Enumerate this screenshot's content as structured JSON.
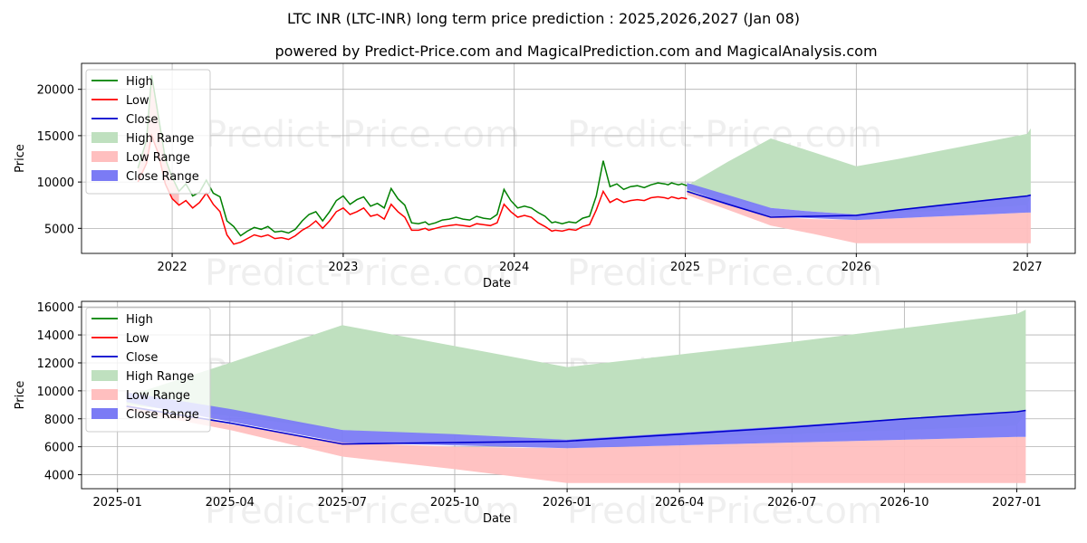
{
  "title": "LTC INR (LTC-INR) long term price prediction : 2025,2026,2027 (Jan 08)",
  "subtitle": "powered by Predict-Price.com and MagicalPrediction.com and MagicalAnalysis.com",
  "watermark": "Predict-Price.com",
  "colors": {
    "high": "#008000",
    "low": "#ff0000",
    "close": "#0000cd",
    "high_range": "#bfe0bf",
    "low_range": "#ffbfbf",
    "close_range": "#7b7bf5",
    "grid": "#b0b0b0"
  },
  "chart_data": [
    {
      "type": "line",
      "name": "top",
      "xlabel": "Date",
      "ylabel": "Price",
      "xlim": [
        2021.47,
        2027.28
      ],
      "ylim": [
        2300,
        22800
      ],
      "x_ticks": [
        2022,
        2023,
        2024,
        2025,
        2026,
        2027
      ],
      "x_tick_labels": [
        "2022",
        "2023",
        "2024",
        "2025",
        "2026",
        "2027"
      ],
      "y_ticks": [
        5000,
        10000,
        15000,
        20000
      ],
      "y_tick_labels": [
        "5000",
        "10000",
        "15000",
        "20000"
      ],
      "legend": [
        "High",
        "Low",
        "Close",
        "High Range",
        "Low Range",
        "Close Range"
      ],
      "legend_position": "top-left",
      "history": {
        "x": [
          2021.8,
          2021.85,
          2021.88,
          2021.92,
          2021.96,
          2022.0,
          2022.04,
          2022.08,
          2022.12,
          2022.16,
          2022.2,
          2022.24,
          2022.28,
          2022.32,
          2022.36,
          2022.4,
          2022.44,
          2022.48,
          2022.52,
          2022.56,
          2022.6,
          2022.64,
          2022.68,
          2022.72,
          2022.76,
          2022.8,
          2022.84,
          2022.88,
          2022.92,
          2022.96,
          2023.0,
          2023.04,
          2023.08,
          2023.12,
          2023.16,
          2023.2,
          2023.24,
          2023.28,
          2023.32,
          2023.36,
          2023.4,
          2023.44,
          2023.48,
          2023.5,
          2023.54,
          2023.58,
          2023.62,
          2023.66,
          2023.7,
          2023.74,
          2023.78,
          2023.82,
          2023.86,
          2023.9,
          2023.94,
          2023.98,
          2024.02,
          2024.06,
          2024.1,
          2024.14,
          2024.18,
          2024.22,
          2024.24,
          2024.28,
          2024.32,
          2024.36,
          2024.4,
          2024.44,
          2024.48,
          2024.52,
          2024.56,
          2024.6,
          2024.64,
          2024.68,
          2024.72,
          2024.76,
          2024.8,
          2024.84,
          2024.88,
          2024.9,
          2024.92,
          2024.94,
          2024.96,
          2024.98,
          2025.01
        ],
        "high": [
          11500,
          14500,
          21500,
          17000,
          12500,
          10500,
          9000,
          9800,
          8500,
          8900,
          10200,
          8800,
          8400,
          5800,
          5200,
          4200,
          4700,
          5100,
          4900,
          5200,
          4600,
          4700,
          4500,
          4900,
          5800,
          6500,
          6800,
          5800,
          6800,
          8000,
          8500,
          7600,
          8100,
          8400,
          7400,
          7700,
          7200,
          9300,
          8200,
          7500,
          5600,
          5500,
          5700,
          5400,
          5600,
          5900,
          6000,
          6200,
          6000,
          5900,
          6300,
          6100,
          6000,
          6500,
          9200,
          8000,
          7200,
          7400,
          7200,
          6700,
          6300,
          5600,
          5700,
          5500,
          5700,
          5600,
          6100,
          6300,
          8500,
          12300,
          9500,
          9800,
          9200,
          9500,
          9600,
          9400,
          9700,
          9900,
          9800,
          9700,
          9900,
          9800,
          9700,
          9800,
          9600
        ],
        "low": [
          10000,
          12000,
          15000,
          13000,
          9800,
          8200,
          7500,
          8000,
          7200,
          7800,
          8800,
          7600,
          6800,
          4300,
          3300,
          3500,
          3900,
          4300,
          4100,
          4300,
          3900,
          4000,
          3800,
          4200,
          4800,
          5200,
          5800,
          5000,
          5800,
          6800,
          7200,
          6500,
          6800,
          7200,
          6300,
          6500,
          6000,
          7600,
          6800,
          6200,
          4800,
          4800,
          5000,
          4800,
          5000,
          5200,
          5300,
          5400,
          5300,
          5200,
          5500,
          5400,
          5300,
          5600,
          7600,
          6800,
          6200,
          6400,
          6200,
          5600,
          5200,
          4700,
          4800,
          4700,
          4900,
          4800,
          5200,
          5400,
          7000,
          9000,
          7800,
          8200,
          7800,
          8000,
          8100,
          8000,
          8300,
          8400,
          8300,
          8200,
          8400,
          8300,
          8200,
          8300,
          8200
        ]
      },
      "forecast": {
        "x": [
          2025.01,
          2025.25,
          2025.5,
          2025.75,
          2026.0,
          2026.25,
          2026.5,
          2026.75,
          2027.0,
          2027.02
        ],
        "high_upper": [
          9600,
          12200,
          14700,
          13200,
          11700,
          12500,
          13400,
          14300,
          15200,
          15800
        ],
        "high_lower": [
          9000,
          8200,
          7200,
          6800,
          6500,
          6700,
          6900,
          7200,
          7500,
          8500
        ],
        "low_upper": [
          9000,
          7500,
          6300,
          6000,
          5900,
          6100,
          6300,
          6500,
          6700,
          6700
        ],
        "low_lower": [
          8600,
          7000,
          5300,
          4400,
          3400,
          3400,
          3400,
          3400,
          3400,
          3400
        ],
        "close_upper": [
          9900,
          8600,
          7200,
          6800,
          6500,
          7000,
          7500,
          8000,
          8500,
          8600
        ],
        "close_lower": [
          9200,
          7600,
          6300,
          6100,
          5900,
          6100,
          6300,
          6500,
          6700,
          6700
        ],
        "close": [
          9000,
          7600,
          6200,
          6300,
          6400,
          7000,
          7500,
          8000,
          8500,
          8600
        ]
      }
    },
    {
      "type": "line",
      "name": "bottom",
      "xlabel": "Date",
      "ylabel": "Price",
      "xlim": [
        2024.92,
        2027.13
      ],
      "ylim": [
        3000,
        16400
      ],
      "x_ticks": [
        2025.0,
        2025.25,
        2025.5,
        2025.75,
        2026.0,
        2026.25,
        2026.5,
        2026.75,
        2027.0
      ],
      "x_tick_labels": [
        "2025-01",
        "2025-04",
        "2025-07",
        "2025-10",
        "2026-01",
        "2026-04",
        "2026-07",
        "2026-10",
        "2027-01"
      ],
      "y_ticks": [
        4000,
        6000,
        8000,
        10000,
        12000,
        14000,
        16000
      ],
      "y_tick_labels": [
        "4000",
        "6000",
        "8000",
        "10000",
        "12000",
        "14000",
        "16000"
      ],
      "legend": [
        "High",
        "Low",
        "Close",
        "High Range",
        "Low Range",
        "Close Range"
      ],
      "legend_position": "top-left",
      "forecast": {
        "x": [
          2025.02,
          2025.25,
          2025.5,
          2025.75,
          2026.0,
          2026.25,
          2026.5,
          2026.75,
          2027.0,
          2027.02
        ],
        "high_upper": [
          9600,
          12000,
          14700,
          13200,
          11700,
          12600,
          13500,
          14500,
          15500,
          15800
        ],
        "high_lower": [
          9000,
          8200,
          7200,
          6800,
          6500,
          6700,
          6900,
          7200,
          7500,
          8500
        ],
        "low_upper": [
          9000,
          7600,
          6300,
          6000,
          5900,
          6100,
          6300,
          6500,
          6700,
          6700
        ],
        "low_lower": [
          8600,
          7200,
          5300,
          4400,
          3400,
          3400,
          3400,
          3400,
          3400,
          3400
        ],
        "close_upper": [
          9900,
          8700,
          7200,
          6900,
          6500,
          7000,
          7500,
          8000,
          8500,
          8600
        ],
        "close_lower": [
          9200,
          7800,
          6300,
          6100,
          5900,
          6100,
          6300,
          6500,
          6700,
          6700
        ],
        "close": [
          8900,
          7700,
          6200,
          6300,
          6400,
          6900,
          7400,
          8000,
          8500,
          8600
        ]
      }
    }
  ]
}
